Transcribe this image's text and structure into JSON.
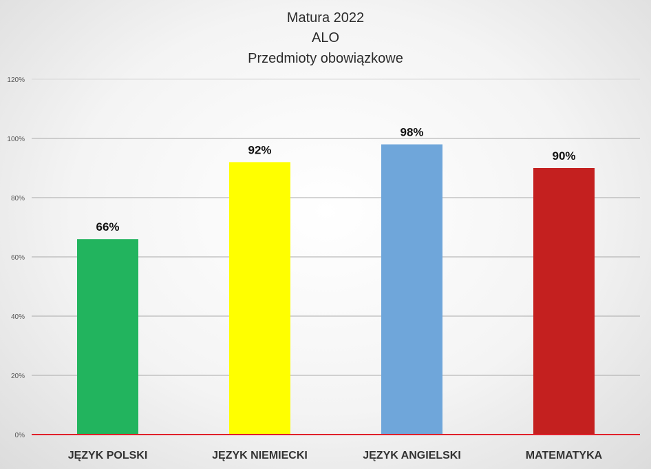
{
  "chart_data": {
    "type": "bar",
    "title": [
      "Matura 2022",
      "ALO",
      "Przedmioty obowiązkowe"
    ],
    "categories": [
      "JĘZYK POLSKI",
      "JĘZYK NIEMIECKI",
      "JĘZYK ANGIELSKI",
      "MATEMATYKA"
    ],
    "values": [
      66,
      92,
      98,
      90
    ],
    "data_labels": [
      "66%",
      "92%",
      "98%",
      "90%"
    ],
    "colors": [
      "#22b45e",
      "#ffff00",
      "#6fa6da",
      "#c4201f"
    ],
    "ylim": [
      0,
      120
    ],
    "yticks": [
      0,
      20,
      40,
      60,
      80,
      100,
      120
    ],
    "ytick_labels": [
      "0%",
      "20%",
      "40%",
      "60%",
      "80%",
      "100%",
      "120%"
    ],
    "grid": true,
    "legend": "none",
    "baseline_color": "#e0202a"
  }
}
